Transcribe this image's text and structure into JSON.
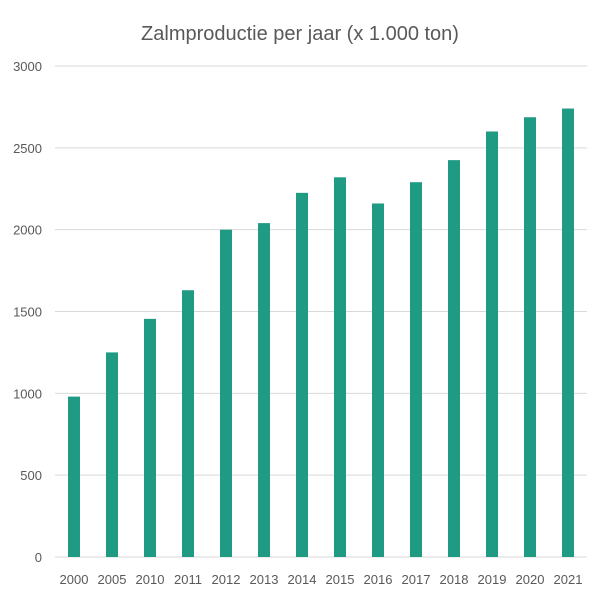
{
  "chart_data": {
    "type": "bar",
    "title": "Zalmproductie per jaar (x 1.000 ton)",
    "xlabel": "",
    "ylabel": "",
    "categories": [
      "2000",
      "2005",
      "2010",
      "2011",
      "2012",
      "2013",
      "2014",
      "2015",
      "2016",
      "2017",
      "2018",
      "2019",
      "2020",
      "2021"
    ],
    "values": [
      980,
      1250,
      1455,
      1630,
      2000,
      2040,
      2225,
      2320,
      2160,
      2290,
      2425,
      2600,
      2687,
      2740
    ],
    "ylim": [
      0,
      3000
    ],
    "yticks": [
      0,
      500,
      1000,
      1500,
      2000,
      2500,
      3000
    ],
    "grid": true,
    "legend": "none",
    "colors": {
      "bar": "#209B83",
      "grid": "#D9D9D9",
      "text": "#595959"
    }
  }
}
